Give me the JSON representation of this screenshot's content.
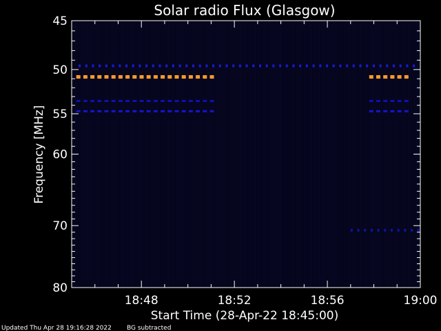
{
  "chart_data": {
    "type": "heatmap",
    "title": "Solar radio Flux (Glasgow)",
    "xlabel": "Start Time (28-Apr-22 18:45:00)",
    "ylabel": "Frequency [MHz]",
    "ylim": [
      45,
      80
    ],
    "xlim_minutes": [
      0,
      15
    ],
    "x_ticks": [
      {
        "label": "18:48",
        "minute": 3
      },
      {
        "label": "18:52",
        "minute": 7
      },
      {
        "label": "18:56",
        "minute": 11
      },
      {
        "label": "19:00",
        "minute": 15
      }
    ],
    "y_ticks": [
      {
        "label": "45",
        "freq": 45
      },
      {
        "label": "50",
        "freq": 50
      },
      {
        "label": "55",
        "freq": 55
      },
      {
        "label": "60",
        "freq": 60
      },
      {
        "label": "70",
        "freq": 70
      },
      {
        "label": "80",
        "freq": 80
      }
    ],
    "y_minor_ticks": [
      46,
      47,
      48,
      49,
      51,
      52,
      53,
      54,
      56,
      57,
      58,
      59,
      61,
      62,
      63,
      64,
      65,
      66,
      67,
      68,
      69,
      71,
      72,
      73,
      74,
      75,
      76,
      77,
      78,
      79
    ],
    "emission_bands": [
      {
        "freq": 49.6,
        "start_min": 0.3,
        "end_min": 15,
        "color": "#1a1ad8",
        "style": "dotted"
      },
      {
        "freq": 50.8,
        "start_min": 0.2,
        "end_min": 6.3,
        "color": "#ff9a2a",
        "style": "dashed"
      },
      {
        "freq": 50.8,
        "start_min": 12.8,
        "end_min": 14.6,
        "color": "#ff9a2a",
        "style": "dashed"
      },
      {
        "freq": 53.5,
        "start_min": 0.2,
        "end_min": 6.3,
        "color": "#1010b0",
        "style": "dashed"
      },
      {
        "freq": 53.5,
        "start_min": 12.8,
        "end_min": 14.6,
        "color": "#1010b0",
        "style": "dashed"
      },
      {
        "freq": 54.7,
        "start_min": 0.2,
        "end_min": 6.3,
        "color": "#1515d0",
        "style": "dashed"
      },
      {
        "freq": 54.7,
        "start_min": 12.8,
        "end_min": 14.6,
        "color": "#1515d0",
        "style": "dashed"
      },
      {
        "freq": 70.7,
        "start_min": 12.0,
        "end_min": 15,
        "color": "#1212a0",
        "style": "dotted"
      }
    ],
    "colors": {
      "background": "#000000",
      "plot_background": "#05051c",
      "axes": "#ffffff"
    }
  },
  "footer": {
    "updated": "Updated Thu Apr 28 19:16:28 2022",
    "note": "BG subtracted"
  }
}
